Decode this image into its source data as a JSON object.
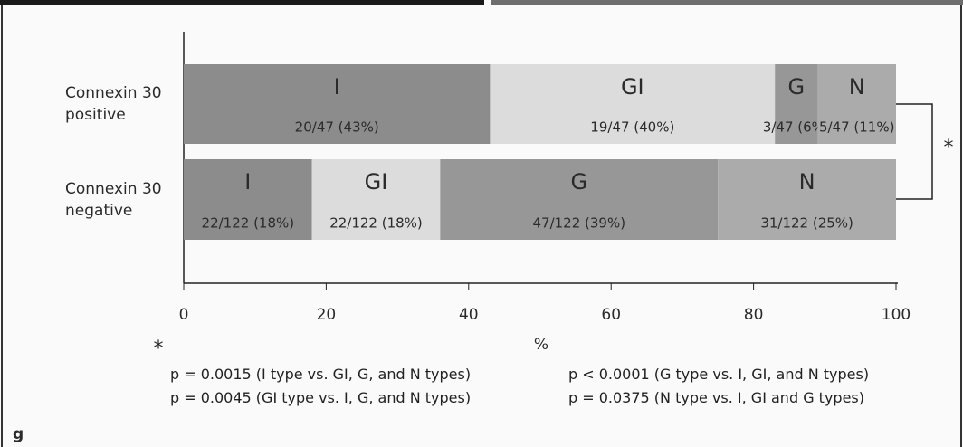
{
  "chart_data": {
    "type": "bar",
    "orientation": "horizontal",
    "stacked": true,
    "categories": [
      "Connexin 30 positive",
      "Connexin 30 negative"
    ],
    "series": [
      {
        "name": "I",
        "color": "#8c8c8c",
        "values": [
          43,
          18
        ],
        "value_labels": [
          "20/47 (43%)",
          "22/122 (18%)"
        ]
      },
      {
        "name": "GI",
        "color": "#dcdcdc",
        "values": [
          40,
          18
        ],
        "value_labels": [
          "19/47 (40%)",
          "22/122 (18%)"
        ]
      },
      {
        "name": "G",
        "color": "#979797",
        "values": [
          6,
          39
        ],
        "value_labels": [
          "3/47 (6%)",
          "47/122 (39%)"
        ]
      },
      {
        "name": "N",
        "color": "#ababab",
        "values": [
          11,
          25
        ],
        "value_labels": [
          "5/47 (11%)",
          "31/122 (25%)"
        ]
      }
    ],
    "xlim": [
      0,
      100
    ],
    "xticks": [
      0,
      20,
      40,
      60,
      80,
      100
    ],
    "xlabel": "%",
    "significance_marker": "*",
    "footnote_marker": "*",
    "footnotes": [
      "p = 0.0015 (I type vs. GI, G, and N types)",
      "p < 0.0001 (G type vs. I, GI, and N types)",
      "p = 0.0045 (GI type vs. I, G, and N types)",
      "p = 0.0375 (N type vs. I, GI and G types)"
    ]
  },
  "panel_label": "g"
}
